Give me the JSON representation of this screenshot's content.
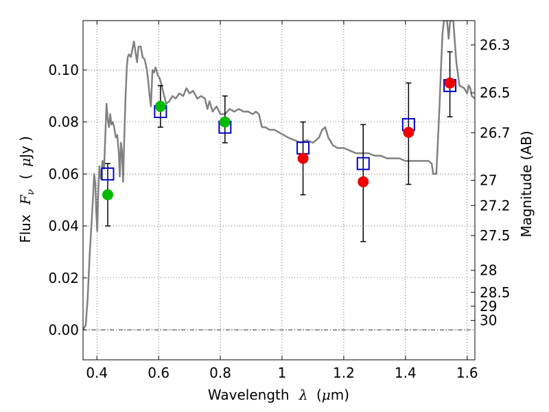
{
  "chart_data": {
    "type": "scatter",
    "xlabel": {
      "text": "Wavelength",
      "symbol": "λ",
      "unit_open": "(",
      "unit_mu": "μ",
      "unit_rest": "m)"
    },
    "ylabel": {
      "text": "Flux",
      "symbol": "F",
      "symbol_sub": "ν",
      "unit_open": "(",
      "unit_mu": "μ",
      "unit_rest": "Jy )"
    },
    "y2label": "Magnitude (AB)",
    "xlim": [
      0.355,
      1.625
    ],
    "ylim": [
      -0.0115,
      0.119
    ],
    "grid": true,
    "xticks": [
      0.4,
      0.6,
      0.8,
      1.0,
      1.2,
      1.4,
      1.6
    ],
    "xtick_labels": [
      "0.4",
      "0.6",
      "0.8",
      "1",
      "1.2",
      "1.4",
      "1.6"
    ],
    "yticks": [
      0.0,
      0.02,
      0.04,
      0.06,
      0.08,
      0.1
    ],
    "ytick_labels": [
      "0.00",
      "0.02",
      "0.04",
      "0.06",
      "0.08",
      "0.10"
    ],
    "y2ticks": [
      26.3,
      26.5,
      26.7,
      27,
      27.2,
      27.5,
      28,
      28.5,
      29,
      30
    ],
    "y2tick_labels": [
      "26.3",
      "26.5",
      "26.7",
      "27",
      "27.2",
      "27.5",
      "28",
      "28.5",
      "29",
      "30"
    ],
    "zero_line_y": 0.0,
    "colors": {
      "model_line": "#808080",
      "model_points": "#0000cc",
      "observed_optical": "#00bb00",
      "observed_nir": "#ee0000",
      "errorbar": "#000000"
    },
    "series": [
      {
        "style": "model-sed-line",
        "points": [
          [
            0.355,
            0.0
          ],
          [
            0.364,
            0.002
          ],
          [
            0.37,
            0.012
          ],
          [
            0.377,
            0.03
          ],
          [
            0.383,
            0.042
          ],
          [
            0.388,
            0.052
          ],
          [
            0.391,
            0.06
          ],
          [
            0.395,
            0.056
          ],
          [
            0.398,
            0.045
          ],
          [
            0.401,
            0.038
          ],
          [
            0.404,
            0.052
          ],
          [
            0.408,
            0.063
          ],
          [
            0.413,
            0.058
          ],
          [
            0.418,
            0.065
          ],
          [
            0.423,
            0.062
          ],
          [
            0.427,
            0.074
          ],
          [
            0.431,
            0.087
          ],
          [
            0.435,
            0.081
          ],
          [
            0.439,
            0.078
          ],
          [
            0.443,
            0.083
          ],
          [
            0.447,
            0.079
          ],
          [
            0.451,
            0.08
          ],
          [
            0.456,
            0.078
          ],
          [
            0.461,
            0.074
          ],
          [
            0.466,
            0.075
          ],
          [
            0.471,
            0.068
          ],
          [
            0.474,
            0.059
          ],
          [
            0.478,
            0.072
          ],
          [
            0.481,
            0.069
          ],
          [
            0.485,
            0.057
          ],
          [
            0.489,
            0.075
          ],
          [
            0.493,
            0.09
          ],
          [
            0.497,
            0.101
          ],
          [
            0.5,
            0.105
          ],
          [
            0.504,
            0.106
          ],
          [
            0.51,
            0.105
          ],
          [
            0.515,
            0.108
          ],
          [
            0.52,
            0.111
          ],
          [
            0.525,
            0.107
          ],
          [
            0.53,
            0.103
          ],
          [
            0.535,
            0.109
          ],
          [
            0.542,
            0.109
          ],
          [
            0.548,
            0.105
          ],
          [
            0.555,
            0.104
          ],
          [
            0.562,
            0.1
          ],
          [
            0.567,
            0.095
          ],
          [
            0.571,
            0.09
          ],
          [
            0.575,
            0.086
          ],
          [
            0.58,
            0.1
          ],
          [
            0.585,
            0.099
          ],
          [
            0.59,
            0.101
          ],
          [
            0.597,
            0.098
          ],
          [
            0.603,
            0.097
          ],
          [
            0.61,
            0.094
          ],
          [
            0.618,
            0.09
          ],
          [
            0.625,
            0.087
          ],
          [
            0.635,
            0.088
          ],
          [
            0.645,
            0.09
          ],
          [
            0.655,
            0.089
          ],
          [
            0.667,
            0.091
          ],
          [
            0.68,
            0.09
          ],
          [
            0.69,
            0.093
          ],
          [
            0.7,
            0.091
          ],
          [
            0.712,
            0.092
          ],
          [
            0.725,
            0.089
          ],
          [
            0.738,
            0.09
          ],
          [
            0.75,
            0.089
          ],
          [
            0.758,
            0.085
          ],
          [
            0.765,
            0.088
          ],
          [
            0.775,
            0.084
          ],
          [
            0.788,
            0.086
          ],
          [
            0.8,
            0.083
          ],
          [
            0.815,
            0.083
          ],
          [
            0.83,
            0.085
          ],
          [
            0.845,
            0.084
          ],
          [
            0.86,
            0.085
          ],
          [
            0.875,
            0.084
          ],
          [
            0.89,
            0.084
          ],
          [
            0.905,
            0.083
          ],
          [
            0.915,
            0.084
          ],
          [
            0.925,
            0.083
          ],
          [
            0.935,
            0.078
          ],
          [
            0.945,
            0.078
          ],
          [
            0.96,
            0.077
          ],
          [
            0.975,
            0.077
          ],
          [
            0.99,
            0.076
          ],
          [
            1.005,
            0.075
          ],
          [
            1.02,
            0.074
          ],
          [
            1.04,
            0.073
          ],
          [
            1.06,
            0.072
          ],
          [
            1.08,
            0.073
          ],
          [
            1.1,
            0.072
          ],
          [
            1.12,
            0.074
          ],
          [
            1.13,
            0.077
          ],
          [
            1.14,
            0.078
          ],
          [
            1.15,
            0.074
          ],
          [
            1.165,
            0.071
          ],
          [
            1.18,
            0.07
          ],
          [
            1.2,
            0.07
          ],
          [
            1.22,
            0.069
          ],
          [
            1.24,
            0.068
          ],
          [
            1.26,
            0.068
          ],
          [
            1.28,
            0.068
          ],
          [
            1.3,
            0.067
          ],
          [
            1.32,
            0.067
          ],
          [
            1.34,
            0.066
          ],
          [
            1.36,
            0.066
          ],
          [
            1.38,
            0.066
          ],
          [
            1.4,
            0.065
          ],
          [
            1.42,
            0.065
          ],
          [
            1.44,
            0.065
          ],
          [
            1.46,
            0.065
          ],
          [
            1.475,
            0.065
          ],
          [
            1.485,
            0.064
          ],
          [
            1.49,
            0.06
          ],
          [
            1.5,
            0.06
          ],
          [
            1.51,
            0.085
          ],
          [
            1.515,
            0.1
          ],
          [
            1.52,
            0.114
          ],
          [
            1.525,
            0.119
          ],
          [
            1.535,
            0.119
          ],
          [
            1.54,
            0.112
          ],
          [
            1.545,
            0.119
          ],
          [
            1.555,
            0.119
          ],
          [
            1.565,
            0.103
          ],
          [
            1.575,
            0.094
          ],
          [
            1.59,
            0.093
          ],
          [
            1.6,
            0.091
          ],
          [
            1.605,
            0.094
          ],
          [
            1.61,
            0.093
          ],
          [
            1.615,
            0.09
          ],
          [
            1.625,
            0.089
          ]
        ]
      },
      {
        "style": "model-photometry-squares",
        "x": [
          0.435,
          0.606,
          0.815,
          1.068,
          1.263,
          1.41,
          1.544
        ],
        "y": [
          0.06,
          0.084,
          0.078,
          0.07,
          0.064,
          0.079,
          0.094
        ]
      },
      {
        "style": "observed-optical-circles",
        "x": [
          0.435,
          0.606,
          0.815
        ],
        "y": [
          0.052,
          0.086,
          0.08
        ],
        "err_low": [
          0.04,
          0.078,
          0.072
        ],
        "err_high": [
          0.064,
          0.094,
          0.09
        ]
      },
      {
        "style": "observed-nir-circles",
        "x": [
          1.068,
          1.263,
          1.41,
          1.544
        ],
        "y": [
          0.066,
          0.057,
          0.076,
          0.095
        ],
        "err_low": [
          0.052,
          0.034,
          0.056,
          0.082
        ],
        "err_high": [
          0.08,
          0.079,
          0.095,
          0.107
        ]
      }
    ]
  }
}
